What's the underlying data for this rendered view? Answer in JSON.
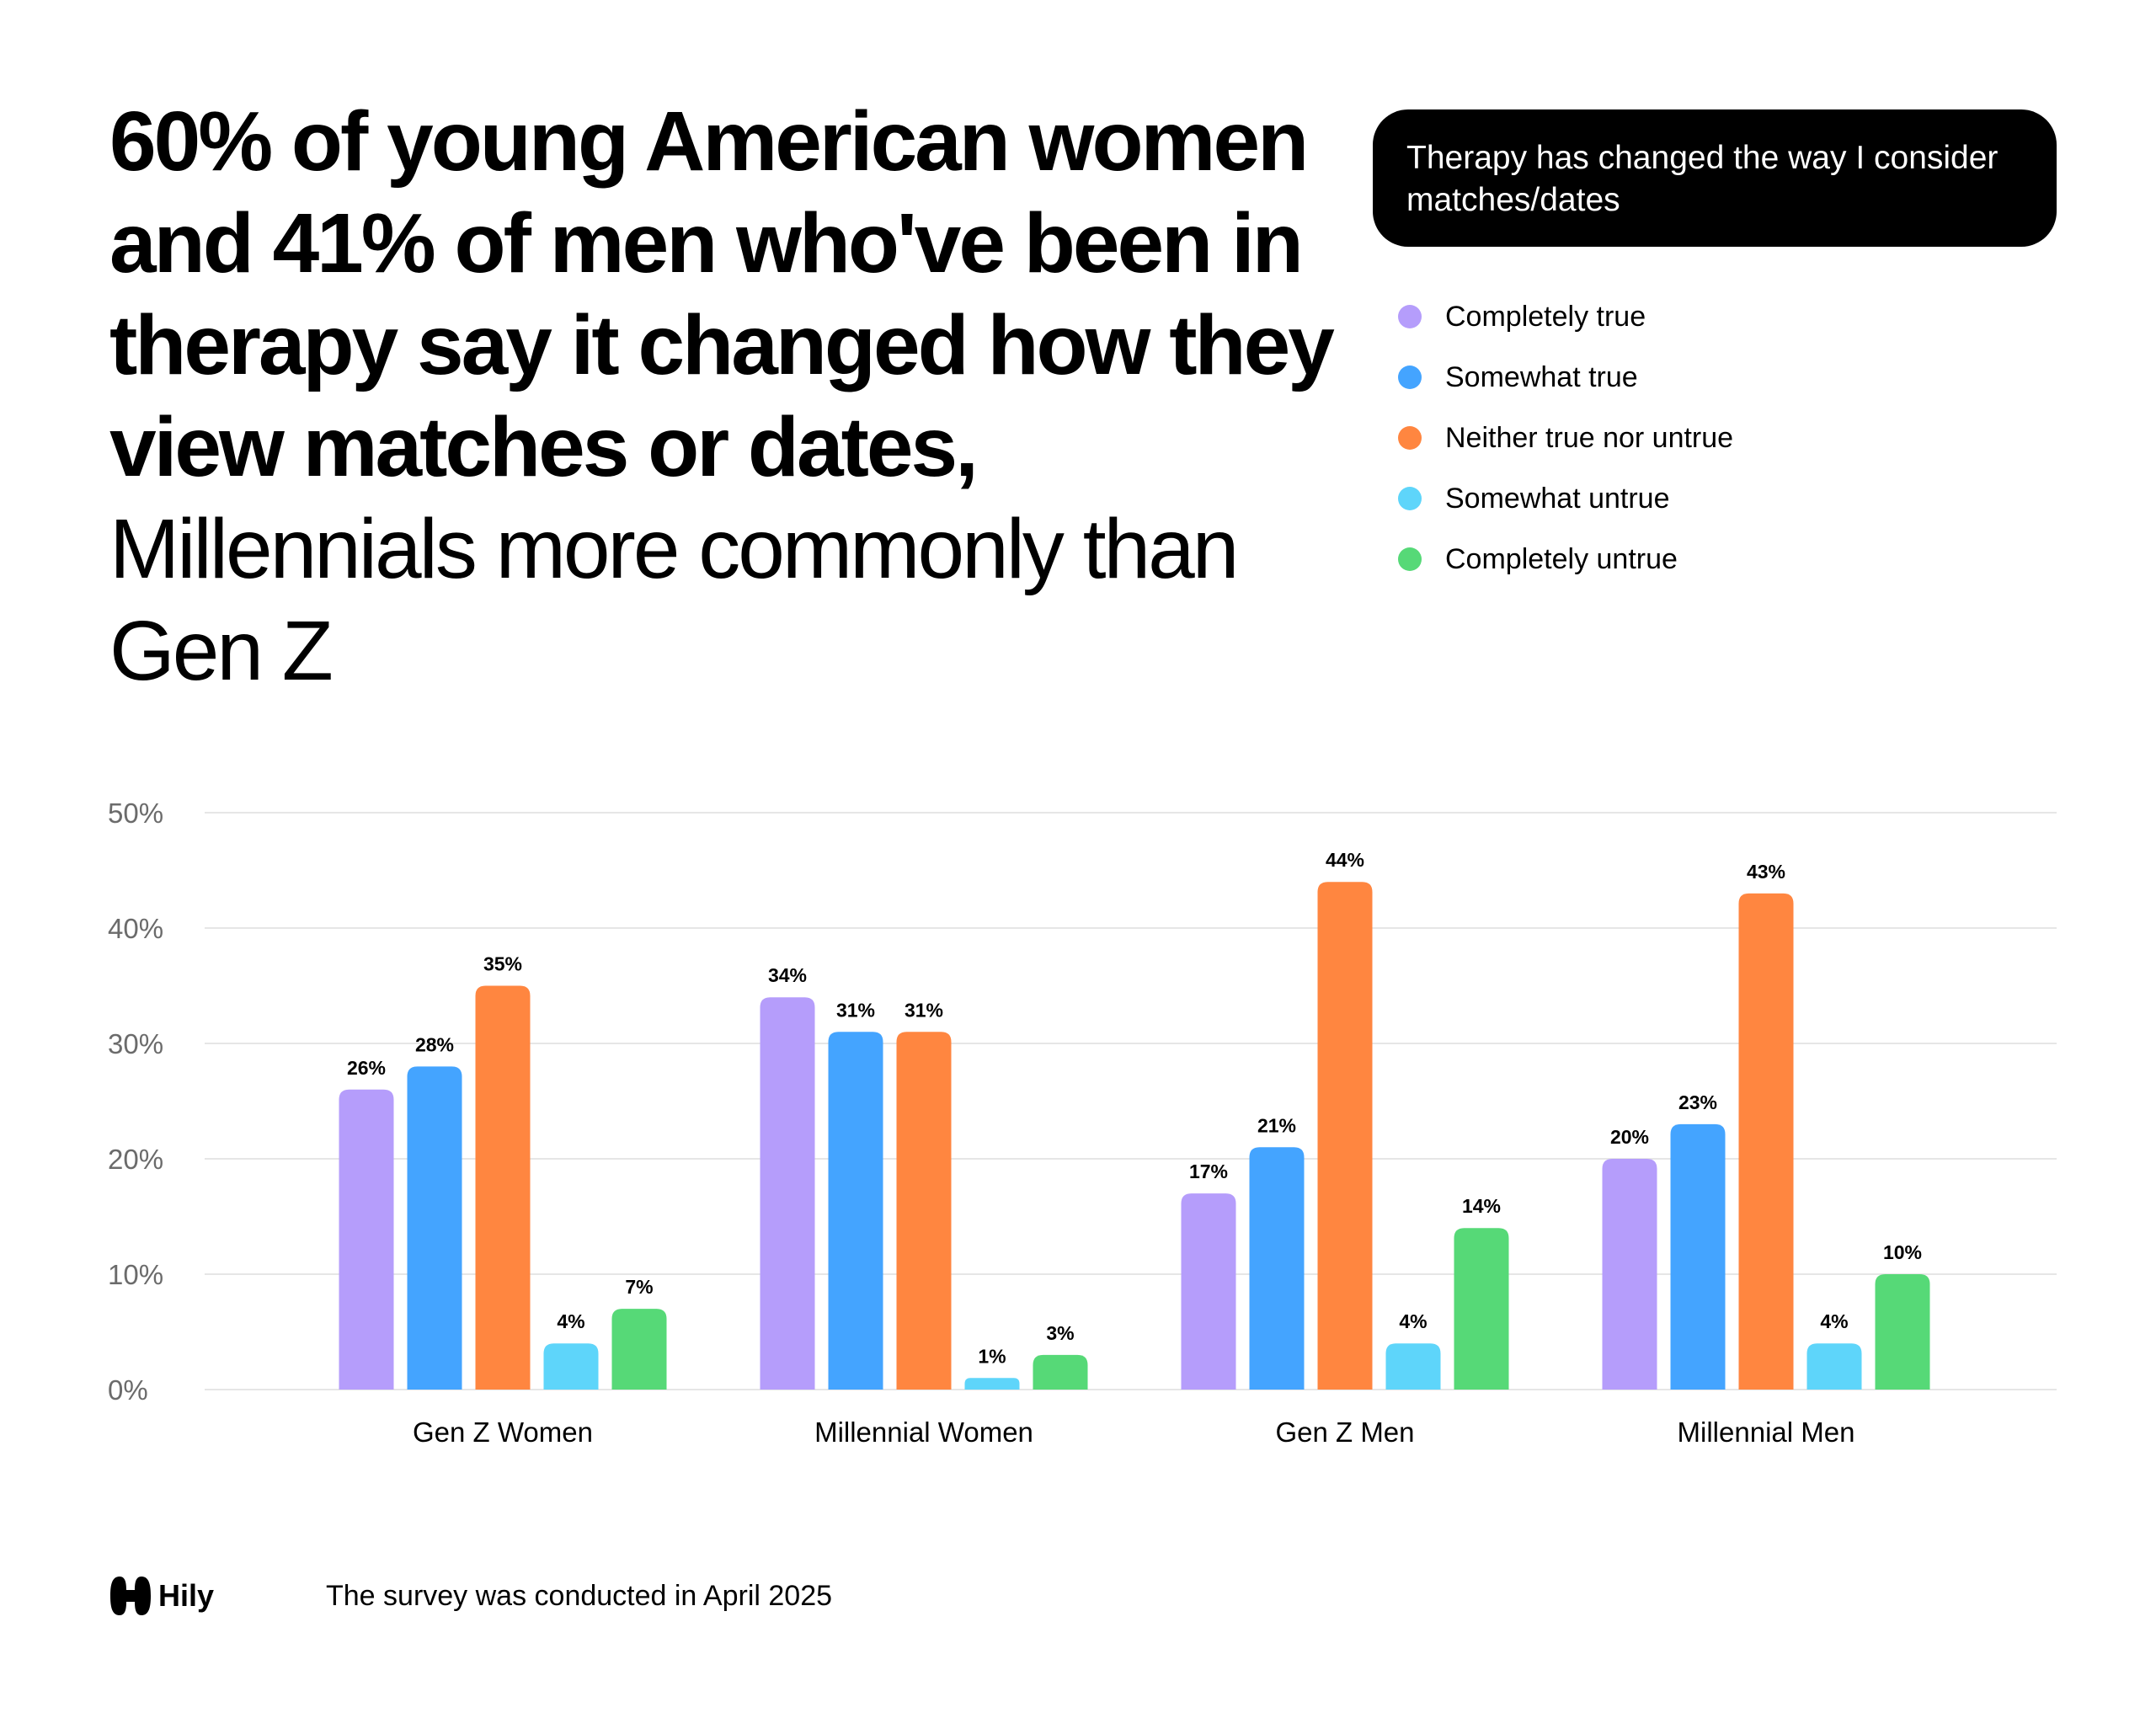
{
  "headline": {
    "bold": "60% of young American women and 41% of men who've been in therapy say it changed how they view matches or dates,",
    "regular": " Millennials more commonly than Gen Z"
  },
  "question": "Therapy has changed the way I consider matches/dates",
  "legend": [
    {
      "label": "Completely true",
      "color": "#b59dfb"
    },
    {
      "label": "Somewhat true",
      "color": "#44a4ff"
    },
    {
      "label": "Neither true nor untrue",
      "color": "#ff8640"
    },
    {
      "label": "Somewhat untrue",
      "color": "#5ed5fa"
    },
    {
      "label": "Completely untrue",
      "color": "#56d977"
    }
  ],
  "chart_data": {
    "type": "bar",
    "title": "Therapy has changed the way I consider matches/dates",
    "categories": [
      "Gen Z Women",
      "Millennial Women",
      "Gen Z Men",
      "Millennial Men"
    ],
    "series": [
      {
        "name": "Completely true",
        "color": "#b59dfb",
        "values": [
          26,
          34,
          17,
          20
        ],
        "labels": [
          "26%",
          "34%",
          "17%",
          "20%"
        ]
      },
      {
        "name": "Somewhat true",
        "color": "#44a4ff",
        "values": [
          28,
          31,
          21,
          23
        ],
        "labels": [
          "28%",
          "31%",
          "21%",
          "23%"
        ]
      },
      {
        "name": "Neither true nor untrue",
        "color": "#ff8640",
        "values": [
          35,
          31,
          44,
          43
        ],
        "labels": [
          "35%",
          "31%",
          "44%",
          "43%"
        ]
      },
      {
        "name": "Somewhat untrue",
        "color": "#5ed5fa",
        "values": [
          4,
          1,
          4,
          4
        ],
        "labels": [
          "4%",
          "1%",
          "4%",
          "4%"
        ]
      },
      {
        "name": "Completely untrue",
        "color": "#56d977",
        "values": [
          7,
          3,
          14,
          10
        ],
        "labels": [
          "7%",
          "3%",
          "14%",
          "10%"
        ]
      }
    ],
    "ylim": [
      0,
      50
    ],
    "yticks": [
      0,
      10,
      20,
      30,
      40,
      50
    ],
    "ytick_labels": [
      "0%",
      "10%",
      "20%",
      "30%",
      "40%",
      "50%"
    ],
    "xlabel": "",
    "ylabel": "",
    "grid": true
  },
  "footer": {
    "brand": "Hily",
    "note": "The survey was conducted in April 2025"
  }
}
